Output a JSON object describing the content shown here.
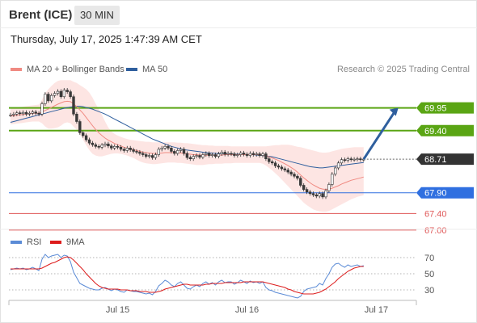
{
  "header": {
    "instrument": "Brent (ICE)",
    "interval": "30 MIN",
    "datetime": "Thursday, July 17, 2025 1:47:39 AM CET",
    "copyright": "Research © 2025 Trading Central"
  },
  "legend": {
    "ma20": {
      "label": "MA 20 + Bollinger Bands",
      "color": "#f08a82"
    },
    "ma50": {
      "label": "MA 50",
      "color": "#2f5f9e"
    }
  },
  "rsi_legend": {
    "rsi": {
      "label": "RSI",
      "color": "#5b8bd6"
    },
    "ma9": {
      "label": "9MA",
      "color": "#dd1c1c"
    }
  },
  "chart_data": [
    {
      "type": "candlestick",
      "title": "Brent (ICE)",
      "ylim": [
        66.9,
        70.8
      ],
      "current_price": 68.71,
      "x_ticks": [
        {
          "label": "Jul 15",
          "bar": 34
        },
        {
          "label": "Jul 16",
          "bar": 75
        },
        {
          "label": "Jul 17",
          "bar": 116
        }
      ],
      "levels": [
        {
          "value": 69.95,
          "label": "69.95",
          "kind": "resistance",
          "color": "#5aa514"
        },
        {
          "value": 69.4,
          "label": "69.40",
          "kind": "resistance",
          "color": "#5aa514"
        },
        {
          "value": 68.71,
          "label": "68.71",
          "kind": "last",
          "color": "#333333"
        },
        {
          "value": 67.9,
          "label": "67.90",
          "kind": "pivot",
          "color": "#2f6fe0"
        },
        {
          "value": 67.4,
          "label": "67.40",
          "kind": "support",
          "color": "#e05a5a"
        },
        {
          "value": 67.0,
          "label": "67.00",
          "kind": "support",
          "color": "#e05a5a"
        }
      ],
      "close": [
        69.78,
        69.8,
        69.83,
        69.81,
        69.84,
        69.8,
        69.82,
        69.85,
        69.82,
        69.8,
        70.05,
        70.28,
        70.12,
        70.25,
        70.3,
        70.35,
        70.22,
        70.38,
        70.34,
        70.22,
        69.8,
        69.62,
        69.35,
        69.28,
        69.18,
        69.1,
        69.06,
        69.02,
        69.0,
        69.05,
        69.08,
        69.03,
        68.98,
        69.02,
        69.0,
        68.95,
        68.92,
        68.98,
        68.94,
        68.9,
        68.88,
        68.85,
        68.82,
        68.78,
        68.8,
        68.75,
        68.82,
        68.95,
        68.98,
        69.02,
        68.98,
        68.9,
        68.85,
        68.92,
        68.95,
        68.85,
        68.75,
        68.72,
        68.78,
        68.8,
        68.76,
        68.82,
        68.85,
        68.8,
        68.82,
        68.78,
        68.84,
        68.88,
        68.83,
        68.85,
        68.84,
        68.8,
        68.82,
        68.86,
        68.83,
        68.8,
        68.85,
        68.82,
        68.84,
        68.8,
        68.84,
        68.72,
        68.65,
        68.62,
        68.55,
        68.52,
        68.48,
        68.45,
        68.4,
        68.35,
        68.3,
        68.25,
        68.08,
        67.98,
        67.92,
        67.88,
        67.85,
        67.82,
        67.88,
        67.8,
        67.95,
        68.1,
        68.35,
        68.5,
        68.62,
        68.7,
        68.68,
        68.72,
        68.7,
        68.71,
        68.72,
        68.7,
        68.71
      ],
      "ma20": [
        69.75,
        69.76,
        69.77,
        69.78,
        69.79,
        69.8,
        69.81,
        69.82,
        69.82,
        69.82,
        69.85,
        69.89,
        69.92,
        69.96,
        70.0,
        70.04,
        70.07,
        70.1,
        70.11,
        70.1,
        70.05,
        69.98,
        69.9,
        69.82,
        69.72,
        69.62,
        69.52,
        69.43,
        69.35,
        69.28,
        69.22,
        69.17,
        69.13,
        69.09,
        69.06,
        69.03,
        69.0,
        68.98,
        68.96,
        68.94,
        68.92,
        68.9,
        68.88,
        68.87,
        68.86,
        68.85,
        68.85,
        68.85,
        68.86,
        68.87,
        68.87,
        68.87,
        68.87,
        68.86,
        68.86,
        68.85,
        68.84,
        68.83,
        68.82,
        68.82,
        68.81,
        68.81,
        68.81,
        68.81,
        68.81,
        68.81,
        68.81,
        68.81,
        68.82,
        68.82,
        68.82,
        68.82,
        68.82,
        68.82,
        68.82,
        68.82,
        68.82,
        68.82,
        68.82,
        68.82,
        68.81,
        68.79,
        68.77,
        68.74,
        68.71,
        68.68,
        68.64,
        68.6,
        68.56,
        68.51,
        68.46,
        68.4,
        68.33,
        68.26,
        68.2,
        68.14,
        68.09,
        68.05,
        68.01,
        67.99,
        67.98,
        67.99,
        68.01,
        68.04,
        68.07,
        68.11,
        68.14,
        68.17,
        68.2,
        68.22,
        68.24,
        68.26,
        68.28
      ],
      "ma50": [
        69.6,
        69.62,
        69.64,
        69.66,
        69.68,
        69.7,
        69.72,
        69.74,
        69.76,
        69.78,
        69.8,
        69.82,
        69.84,
        69.86,
        69.88,
        69.9,
        69.92,
        69.94,
        69.96,
        69.97,
        69.98,
        69.99,
        69.99,
        69.98,
        69.96,
        69.94,
        69.92,
        69.89,
        69.86,
        69.83,
        69.8,
        69.76,
        69.72,
        69.68,
        69.64,
        69.6,
        69.56,
        69.52,
        69.48,
        69.44,
        69.4,
        69.36,
        69.32,
        69.28,
        69.24,
        69.2,
        69.17,
        69.14,
        69.11,
        69.08,
        69.05,
        69.02,
        69.0,
        68.98,
        68.96,
        68.94,
        68.93,
        68.92,
        68.91,
        68.9,
        68.89,
        68.88,
        68.87,
        68.86,
        68.86,
        68.85,
        68.85,
        68.84,
        68.84,
        68.84,
        68.83,
        68.83,
        68.83,
        68.83,
        68.82,
        68.82,
        68.82,
        68.82,
        68.81,
        68.81,
        68.8,
        68.79,
        68.78,
        68.77,
        68.75,
        68.73,
        68.71,
        68.69,
        68.67,
        68.65,
        68.63,
        68.61,
        68.59,
        68.57,
        68.55,
        68.53,
        68.52,
        68.51,
        68.5,
        68.5,
        68.51,
        68.52,
        68.53,
        68.54,
        68.55,
        68.56,
        68.57,
        68.58,
        68.59,
        68.6,
        68.61,
        68.62,
        68.63
      ],
      "bb_upper": [
        69.95,
        69.95,
        69.96,
        69.97,
        69.98,
        69.99,
        70.0,
        70.01,
        70.02,
        70.03,
        70.15,
        70.3,
        70.4,
        70.48,
        70.55,
        70.6,
        70.62,
        70.62,
        70.62,
        70.62,
        70.58,
        70.55,
        70.5,
        70.45,
        70.4,
        70.32,
        70.2,
        70.05,
        69.92,
        69.78,
        69.62,
        69.48,
        69.38,
        69.32,
        69.28,
        69.25,
        69.22,
        69.2,
        69.18,
        69.17,
        69.16,
        69.15,
        69.14,
        69.13,
        69.13,
        69.12,
        69.12,
        69.12,
        69.12,
        69.12,
        69.12,
        69.12,
        69.12,
        69.11,
        69.11,
        69.1,
        69.1,
        69.09,
        69.08,
        69.07,
        69.06,
        69.05,
        69.05,
        69.04,
        69.04,
        69.03,
        69.03,
        69.03,
        69.03,
        69.03,
        69.02,
        69.02,
        69.02,
        69.02,
        69.02,
        69.02,
        69.02,
        69.02,
        69.02,
        69.02,
        69.02,
        69.02,
        69.03,
        69.04,
        69.05,
        69.05,
        69.06,
        69.06,
        69.06,
        69.05,
        69.03,
        69.01,
        69.0,
        68.98,
        68.96,
        68.94,
        68.92,
        68.9,
        68.88,
        68.87,
        68.87,
        68.88,
        68.9,
        68.92,
        68.94,
        68.96,
        68.97,
        68.98,
        68.99,
        69.0,
        69.0,
        69.0,
        69.0
      ],
      "bb_lower": [
        69.55,
        69.56,
        69.57,
        69.58,
        69.59,
        69.6,
        69.61,
        69.62,
        69.62,
        69.62,
        69.58,
        69.5,
        69.45,
        69.45,
        69.46,
        69.48,
        69.52,
        69.58,
        69.6,
        69.58,
        69.5,
        69.42,
        69.3,
        69.18,
        69.05,
        68.93,
        68.84,
        68.8,
        68.78,
        68.78,
        68.8,
        68.82,
        68.84,
        68.85,
        68.85,
        68.84,
        68.82,
        68.8,
        68.77,
        68.74,
        68.7,
        68.66,
        68.63,
        68.61,
        68.6,
        68.59,
        68.59,
        68.6,
        68.61,
        68.62,
        68.63,
        68.63,
        68.63,
        68.62,
        68.62,
        68.61,
        68.6,
        68.59,
        68.58,
        68.57,
        68.57,
        68.57,
        68.58,
        68.59,
        68.59,
        68.6,
        68.6,
        68.6,
        68.61,
        68.61,
        68.61,
        68.62,
        68.62,
        68.62,
        68.62,
        68.62,
        68.62,
        68.62,
        68.62,
        68.62,
        68.6,
        68.56,
        68.5,
        68.44,
        68.37,
        68.3,
        68.22,
        68.14,
        68.06,
        67.98,
        67.9,
        67.82,
        67.74,
        67.66,
        67.6,
        67.55,
        67.5,
        67.47,
        67.45,
        67.44,
        67.44,
        67.46,
        67.5,
        67.54,
        67.58,
        67.62,
        67.66,
        67.7,
        67.74,
        67.77,
        67.8,
        67.82,
        67.84
      ],
      "forecast_arrow": {
        "from_bar": 112,
        "from_value": 68.71,
        "to_bar": 123,
        "to_value": 69.95,
        "color": "#2f5f9e"
      }
    },
    {
      "type": "line",
      "title": "RSI",
      "ylim": [
        18,
        82
      ],
      "y_ticks": [
        70,
        50,
        30
      ],
      "series": [
        {
          "name": "RSI",
          "color": "#5b8bd6",
          "values": [
            55,
            56,
            57,
            56,
            57,
            55,
            56,
            58,
            56,
            54,
            68,
            74,
            70,
            72,
            73,
            74,
            70,
            73,
            72,
            65,
            52,
            45,
            38,
            36,
            34,
            32,
            31,
            30,
            30,
            32,
            33,
            31,
            29,
            31,
            30,
            28,
            27,
            30,
            29,
            28,
            28,
            27,
            26,
            25,
            26,
            24,
            28,
            35,
            38,
            42,
            40,
            36,
            34,
            38,
            40,
            36,
            32,
            31,
            34,
            36,
            34,
            38,
            40,
            37,
            39,
            36,
            40,
            42,
            39,
            40,
            40,
            37,
            39,
            42,
            40,
            38,
            41,
            39,
            40,
            38,
            40,
            33,
            30,
            29,
            27,
            26,
            25,
            24,
            23,
            22,
            21,
            20,
            22,
            28,
            31,
            32,
            33,
            34,
            38,
            36,
            44,
            50,
            58,
            62,
            63,
            60,
            58,
            61,
            59,
            60,
            61,
            59,
            60
          ]
        },
        {
          "name": "9MA",
          "color": "#dd1c1c",
          "values": [
            56,
            56,
            56,
            56,
            56,
            56,
            56,
            56,
            56,
            56,
            57,
            59,
            61,
            63,
            64,
            66,
            68,
            70,
            71,
            70,
            67,
            63,
            59,
            55,
            50,
            46,
            42,
            38,
            35,
            33,
            32,
            31,
            31,
            31,
            31,
            30,
            30,
            30,
            29,
            29,
            29,
            28,
            28,
            28,
            27,
            27,
            27,
            28,
            29,
            31,
            32,
            33,
            34,
            35,
            36,
            37,
            37,
            36,
            36,
            36,
            36,
            36,
            37,
            37,
            38,
            38,
            38,
            38,
            39,
            39,
            39,
            39,
            39,
            39,
            40,
            40,
            40,
            40,
            40,
            40,
            40,
            39,
            38,
            37,
            36,
            35,
            34,
            33,
            31,
            30,
            28,
            27,
            26,
            25,
            25,
            25,
            25,
            26,
            27,
            29,
            31,
            34,
            37,
            40,
            44,
            47,
            50,
            53,
            55,
            57,
            58,
            59,
            59
          ]
        }
      ],
      "x_ticks": [
        {
          "label": "Jul 15",
          "bar": 34
        },
        {
          "label": "Jul 16",
          "bar": 75
        },
        {
          "label": "Jul 17",
          "bar": 116
        }
      ]
    }
  ]
}
